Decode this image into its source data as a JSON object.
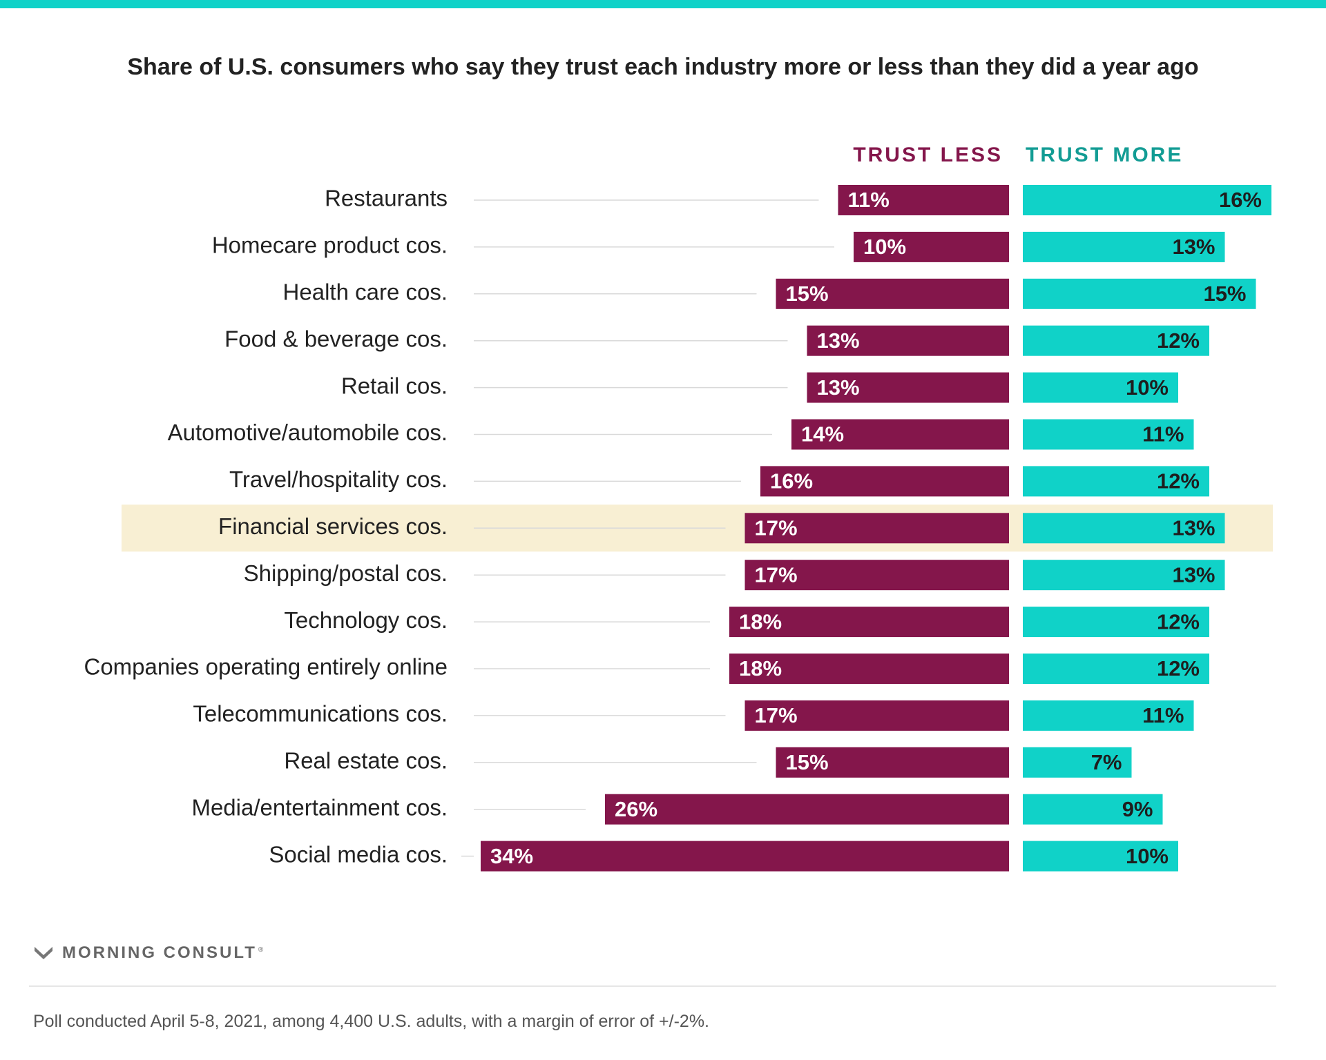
{
  "chart_data": {
    "type": "bar",
    "title": "Share of U.S. consumers who say they trust each industry more or less than they did a year ago",
    "legend": [
      "TRUST LESS",
      "TRUST MORE"
    ],
    "categories": [
      "Restaurants",
      "Homecare product cos.",
      "Health care cos.",
      "Food & beverage cos.",
      "Retail cos.",
      "Automotive/automobile cos.",
      "Travel/hospitality cos.",
      "Financial services cos.",
      "Shipping/postal cos.",
      "Technology cos.",
      "Companies operating entirely online",
      "Telecommunications cos.",
      "Real estate cos.",
      "Media/entertainment cos.",
      "Social media cos."
    ],
    "series": [
      {
        "name": "TRUST LESS",
        "color": "#84164b",
        "values": [
          11,
          10,
          15,
          13,
          13,
          14,
          16,
          17,
          17,
          18,
          18,
          17,
          15,
          26,
          34
        ],
        "labels": [
          "11%",
          "10%",
          "15%",
          "13%",
          "13%",
          "14%",
          "16%",
          "17%",
          "17%",
          "18%",
          "18%",
          "17%",
          "15%",
          "26%",
          "34%"
        ]
      },
      {
        "name": "TRUST MORE",
        "color": "#10d2c8",
        "values": [
          16,
          13,
          15,
          12,
          10,
          11,
          12,
          13,
          13,
          12,
          12,
          11,
          7,
          9,
          10
        ],
        "labels": [
          "16%",
          "13%",
          "15%",
          "12%",
          "10%",
          "11%",
          "12%",
          "13%",
          "13%",
          "12%",
          "12%",
          "11%",
          "7%",
          "9%",
          "10%"
        ]
      }
    ],
    "highlighted_category": "Financial services cos.",
    "highlight_color": "#f8efd3",
    "grid": false
  },
  "brand": {
    "name": "MORNING CONSULT",
    "mark": "®"
  },
  "footnote": "Poll conducted April 5-8, 2021, among 4,400 U.S. adults, with a margin of error of +/-2%."
}
